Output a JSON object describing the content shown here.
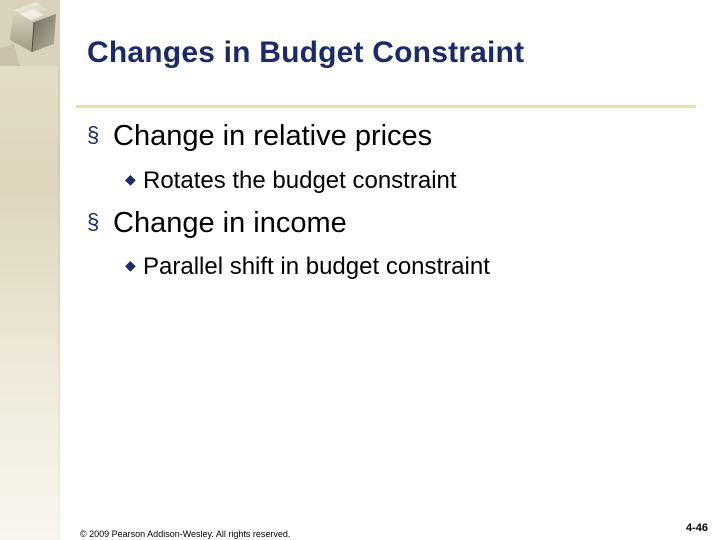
{
  "slide": {
    "title": "Changes in Budget Constraint",
    "bullets": [
      {
        "text": "Change in relative prices",
        "sub": [
          "Rotates the budget constraint"
        ]
      },
      {
        "text": "Change in income",
        "sub": [
          "Parallel shift in budget constraint"
        ]
      }
    ],
    "bullet_marker_l1": "§",
    "bullet_marker_l2": "◆"
  },
  "footer": {
    "copyright": "© 2009 Pearson Addison-Wesley. All rights reserved.",
    "page_number": "4-46"
  },
  "colors": {
    "title": "#1a2a6e",
    "rule": "#e9dfaa",
    "side_strip": "#e6e0c8",
    "background": "#ffffff"
  },
  "icons": {
    "decoration": "glass-cube-icon"
  }
}
